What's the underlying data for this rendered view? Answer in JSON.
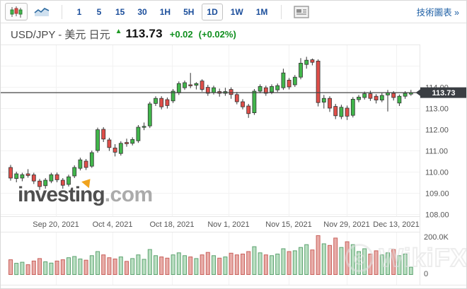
{
  "toolbar": {
    "chart_type_buttons": [
      {
        "name": "candlestick-chart-type",
        "selected": true
      },
      {
        "name": "line-chart-type",
        "selected": false
      }
    ],
    "timeframes": [
      "1",
      "5",
      "15",
      "30",
      "1H",
      "5H",
      "1D",
      "1W",
      "1M"
    ],
    "selected_timeframe": "1D",
    "tech_chart_link": "技術圖表 »"
  },
  "header": {
    "symbol": "USD/JPY - 美元 日元",
    "direction_arrow": "▲",
    "price": "113.73",
    "change": "+0.02",
    "change_pct": "(+0.02%)"
  },
  "watermarks": {
    "investing_text": "investing",
    "investing_suffix": ".com",
    "wikifx_text": "WikiFX"
  },
  "colors": {
    "up": "#41b64b",
    "down": "#df4e49",
    "up_volume_fill": "rgba(101,183,119,0.45)",
    "up_volume_stroke": "#5ea371",
    "down_volume_fill": "rgba(214,106,99,0.55)",
    "down_volume_stroke": "#c9615b",
    "grid": "#f2f2f2",
    "pane_border": "#e7e7e7",
    "axis_text": "#555555",
    "price_line": "#444444",
    "badge_bg": "#3a3e43",
    "badge_text": "#ffffff"
  },
  "chart_data": {
    "type": "candlestick",
    "symbol": "USD/JPY",
    "timeframe": "1D",
    "title": "USD/JPY daily candlestick with volume",
    "y_axis": {
      "labels": [
        "114.00",
        "113.00",
        "112.00",
        "111.00",
        "110.00",
        "109.00",
        "108.00"
      ],
      "unlabeled_gridlines": [
        115
      ],
      "top_price_label": 114,
      "gridline_step": 1
    },
    "x_axis": {
      "labels": [
        "Sep 20, 2021",
        "Oct 4, 2021",
        "Oct 18, 2021",
        "Nov 1, 2021",
        "Nov 15, 2021",
        "Nov 29, 2021",
        "Dec 13, 2021"
      ]
    },
    "current_price": {
      "value": 113.73,
      "label": "113.73"
    },
    "volume_axis": {
      "top_label": "200.0K",
      "zero_label": "0",
      "max_k": 200
    },
    "legend_position": "none",
    "grid": true,
    "candles_ohlc": [
      [
        110.2,
        110.32,
        109.58,
        109.7
      ],
      [
        109.68,
        110.0,
        109.5,
        109.9
      ],
      [
        109.7,
        109.95,
        109.55,
        109.86
      ],
      [
        109.9,
        110.12,
        109.72,
        109.82
      ],
      [
        109.85,
        109.95,
        109.42,
        109.56
      ],
      [
        109.56,
        109.66,
        109.14,
        109.3
      ],
      [
        109.34,
        109.7,
        109.2,
        109.6
      ],
      [
        109.56,
        109.95,
        109.46,
        109.86
      ],
      [
        109.86,
        109.96,
        109.5,
        109.62
      ],
      [
        109.6,
        109.7,
        109.2,
        109.36
      ],
      [
        109.4,
        109.86,
        109.3,
        109.76
      ],
      [
        109.8,
        110.3,
        109.7,
        110.2
      ],
      [
        110.16,
        110.66,
        110.06,
        110.56
      ],
      [
        110.5,
        110.6,
        110.08,
        110.2
      ],
      [
        110.26,
        111.0,
        110.18,
        110.9
      ],
      [
        111.0,
        112.08,
        110.9,
        111.98
      ],
      [
        112.0,
        112.1,
        111.4,
        111.54
      ],
      [
        111.5,
        111.6,
        110.98,
        111.14
      ],
      [
        111.12,
        111.3,
        110.72,
        110.92
      ],
      [
        110.86,
        111.44,
        110.76,
        111.34
      ],
      [
        111.38,
        111.56,
        111.18,
        111.32
      ],
      [
        111.34,
        111.62,
        111.24,
        111.52
      ],
      [
        111.46,
        112.2,
        111.36,
        112.1
      ],
      [
        112.1,
        112.32,
        111.96,
        112.14
      ],
      [
        112.16,
        113.3,
        112.06,
        113.2
      ],
      [
        113.22,
        113.56,
        113.1,
        113.46
      ],
      [
        113.46,
        113.56,
        112.94,
        113.06
      ],
      [
        113.4,
        113.5,
        112.98,
        113.12
      ],
      [
        113.34,
        113.9,
        113.24,
        113.8
      ],
      [
        113.72,
        114.26,
        113.62,
        114.16
      ],
      [
        113.96,
        114.3,
        113.86,
        114.2
      ],
      [
        114.1,
        114.66,
        113.94,
        114.06
      ],
      [
        114.08,
        114.22,
        113.88,
        114.16
      ],
      [
        114.28,
        114.36,
        113.78,
        113.88
      ],
      [
        113.98,
        114.1,
        113.58,
        113.7
      ],
      [
        113.74,
        114.06,
        113.64,
        113.96
      ],
      [
        113.78,
        113.92,
        113.54,
        113.7
      ],
      [
        113.7,
        113.96,
        113.58,
        113.78
      ],
      [
        113.88,
        113.98,
        113.44,
        113.64
      ],
      [
        113.64,
        113.76,
        113.18,
        113.3
      ],
      [
        113.3,
        113.42,
        112.94,
        113.06
      ],
      [
        113.1,
        113.2,
        112.54,
        112.74
      ],
      [
        112.78,
        113.9,
        112.68,
        113.8
      ],
      [
        113.8,
        114.12,
        113.7,
        114.02
      ],
      [
        113.96,
        114.06,
        113.58,
        113.7
      ],
      [
        113.76,
        114.12,
        113.66,
        114.02
      ],
      [
        113.86,
        114.16,
        113.76,
        114.06
      ],
      [
        113.96,
        114.86,
        113.86,
        114.66
      ],
      [
        114.32,
        114.42,
        113.88,
        114.0
      ],
      [
        114.1,
        114.56,
        114.0,
        114.46
      ],
      [
        114.46,
        115.36,
        114.36,
        115.12
      ],
      [
        115.06,
        115.42,
        114.86,
        115.26
      ],
      [
        115.28,
        115.34,
        115.02,
        115.16
      ],
      [
        115.22,
        115.3,
        113.08,
        113.26
      ],
      [
        113.28,
        113.62,
        112.98,
        113.46
      ],
      [
        113.46,
        113.56,
        112.82,
        113.0
      ],
      [
        113.08,
        113.2,
        112.48,
        112.64
      ],
      [
        112.6,
        113.16,
        112.48,
        113.04
      ],
      [
        113.0,
        113.12,
        112.44,
        112.62
      ],
      [
        112.66,
        113.52,
        112.56,
        113.42
      ],
      [
        113.4,
        113.62,
        113.28,
        113.52
      ],
      [
        113.5,
        113.78,
        113.4,
        113.68
      ],
      [
        113.68,
        113.82,
        113.34,
        113.46
      ],
      [
        113.56,
        113.66,
        113.22,
        113.38
      ],
      [
        113.38,
        113.72,
        113.28,
        113.6
      ],
      [
        113.62,
        113.86,
        112.84,
        113.72
      ],
      [
        113.7,
        113.8,
        113.36,
        113.5
      ],
      [
        113.24,
        113.64,
        113.1,
        113.56
      ],
      [
        113.56,
        113.8,
        113.44,
        113.7
      ],
      [
        113.66,
        113.86,
        113.58,
        113.73
      ]
    ],
    "volumes_k": [
      72,
      55,
      60,
      48,
      66,
      78,
      62,
      56,
      66,
      72,
      82,
      88,
      76,
      70,
      92,
      112,
      96,
      82,
      76,
      86,
      64,
      78,
      96,
      74,
      122,
      92,
      86,
      80,
      96,
      106,
      92,
      86,
      78,
      96,
      108,
      92,
      80,
      86,
      104,
      96,
      100,
      112,
      136,
      106,
      96,
      92,
      100,
      126,
      112,
      116,
      132,
      146,
      120,
      190,
      150,
      142,
      178,
      132,
      160,
      146,
      112,
      126,
      100,
      116,
      96,
      106,
      122,
      92,
      100,
      36
    ]
  }
}
